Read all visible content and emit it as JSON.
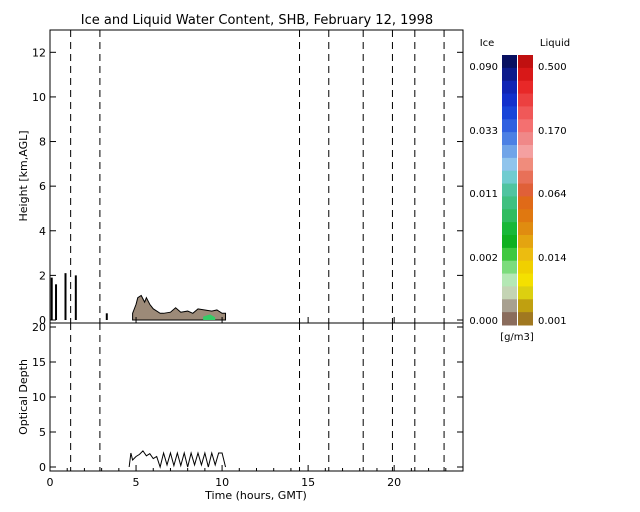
{
  "title": "Ice and Liquid Water Content, SHB, February 12, 1998",
  "colors": {
    "frame": "#000000",
    "background": "#ffffff",
    "cloud_fill": "#9c8a78",
    "cloud_green": "#33cc66"
  },
  "chart_data": [
    {
      "type": "area",
      "panel": "top",
      "ylabel": "Height [km,AGL]",
      "xlim": [
        0,
        24
      ],
      "ylim": [
        0,
        13
      ],
      "yticks": [
        "0",
        "2",
        "4",
        "6",
        "8",
        "10",
        "12"
      ],
      "ytick_values": [
        0,
        2,
        4,
        6,
        8,
        10,
        12
      ],
      "grid": false,
      "dashed_time_markers": [
        1.2,
        2.9,
        14.5,
        16.2,
        18.2,
        19.9,
        21.2,
        22.9
      ],
      "cloud_top_km": {
        "x": [
          4.8,
          5.0,
          5.1,
          5.3,
          5.5,
          5.6,
          5.8,
          6.0,
          6.2,
          6.4,
          6.6,
          7.0,
          7.3,
          7.6,
          8.0,
          8.3,
          8.6,
          9.0,
          9.4,
          9.7,
          10.0,
          10.2
        ],
        "y": [
          0.3,
          0.7,
          1.0,
          1.1,
          0.8,
          1.0,
          0.7,
          0.5,
          0.4,
          0.3,
          0.3,
          0.35,
          0.55,
          0.35,
          0.4,
          0.3,
          0.5,
          0.45,
          0.4,
          0.45,
          0.3,
          0.3
        ]
      },
      "green_patch_km": {
        "x": [
          8.9,
          9.3,
          9.6
        ],
        "y": [
          0.15,
          0.25,
          0.12
        ]
      },
      "low_echo_bars": {
        "x": [
          0.1,
          0.35,
          0.9,
          1.5,
          3.3
        ],
        "y": [
          1.9,
          1.6,
          2.1,
          2.0,
          0.3
        ]
      }
    },
    {
      "type": "line",
      "panel": "bottom",
      "xlabel": "Time (hours, GMT)",
      "ylabel": "Optical Depth",
      "xlim": [
        0,
        24
      ],
      "ylim": [
        0,
        20
      ],
      "xticks": [
        "0",
        "5",
        "10",
        "15",
        "20"
      ],
      "xtick_values": [
        0,
        5,
        10,
        15,
        20
      ],
      "yticks": [
        "0",
        "5",
        "10",
        "15",
        "20"
      ],
      "ytick_values": [
        0,
        5,
        10,
        15,
        20
      ],
      "grid": false,
      "dashed_time_markers": [
        1.2,
        2.9,
        14.5,
        16.2,
        18.2,
        19.9,
        21.2,
        22.9
      ],
      "series": [
        {
          "x": [
            4.6,
            4.7,
            4.8,
            5.0,
            5.2,
            5.4,
            5.6,
            5.8,
            6.0,
            6.2,
            6.4,
            6.6,
            6.8,
            7.0,
            7.2,
            7.4,
            7.6,
            7.8,
            8.0,
            8.2,
            8.4,
            8.6,
            8.8,
            9.0,
            9.2,
            9.4,
            9.6,
            9.8,
            10.0,
            10.2
          ],
          "y": [
            0,
            2,
            1,
            1.5,
            1.8,
            2.3,
            1.6,
            1.9,
            1.2,
            1.5,
            0,
            2.0,
            0.3,
            2.0,
            0.2,
            2.0,
            0.2,
            2.0,
            0,
            2.0,
            0.3,
            2.0,
            0.3,
            2.0,
            0,
            2.0,
            0.3,
            2.0,
            2.0,
            0
          ]
        }
      ]
    }
  ],
  "colorbar": {
    "ice_label": "Ice",
    "liquid_label": "Liquid",
    "unit": "[g/m3]",
    "ice_ticks": [
      "0.090",
      "0.033",
      "0.011",
      "0.002",
      "0.000"
    ],
    "liquid_ticks": [
      "0.500",
      "0.170",
      "0.064",
      "0.014",
      "0.001"
    ],
    "ice_colors": [
      "#081060",
      "#0c1a8a",
      "#1024b4",
      "#1230cc",
      "#1844d8",
      "#3060e0",
      "#4c80e4",
      "#70a4e8",
      "#90c4ec",
      "#70ccd0",
      "#50c4a0",
      "#40c080",
      "#30bc60",
      "#18b838",
      "#10b020",
      "#40c840",
      "#7cdc7c",
      "#b4e8b4",
      "#c4d4b4",
      "#a8a090",
      "#8a6c5c"
    ],
    "liquid_colors": [
      "#c01010",
      "#d81818",
      "#e82828",
      "#ec4040",
      "#f05858",
      "#f47070",
      "#f08888",
      "#f4a0a0",
      "#f08c7c",
      "#e87058",
      "#e06038",
      "#e06a18",
      "#e07810",
      "#e08c10",
      "#e4a410",
      "#ecbc10",
      "#f0d000",
      "#f4e000",
      "#dcd010",
      "#c0a010",
      "#a07820"
    ]
  }
}
